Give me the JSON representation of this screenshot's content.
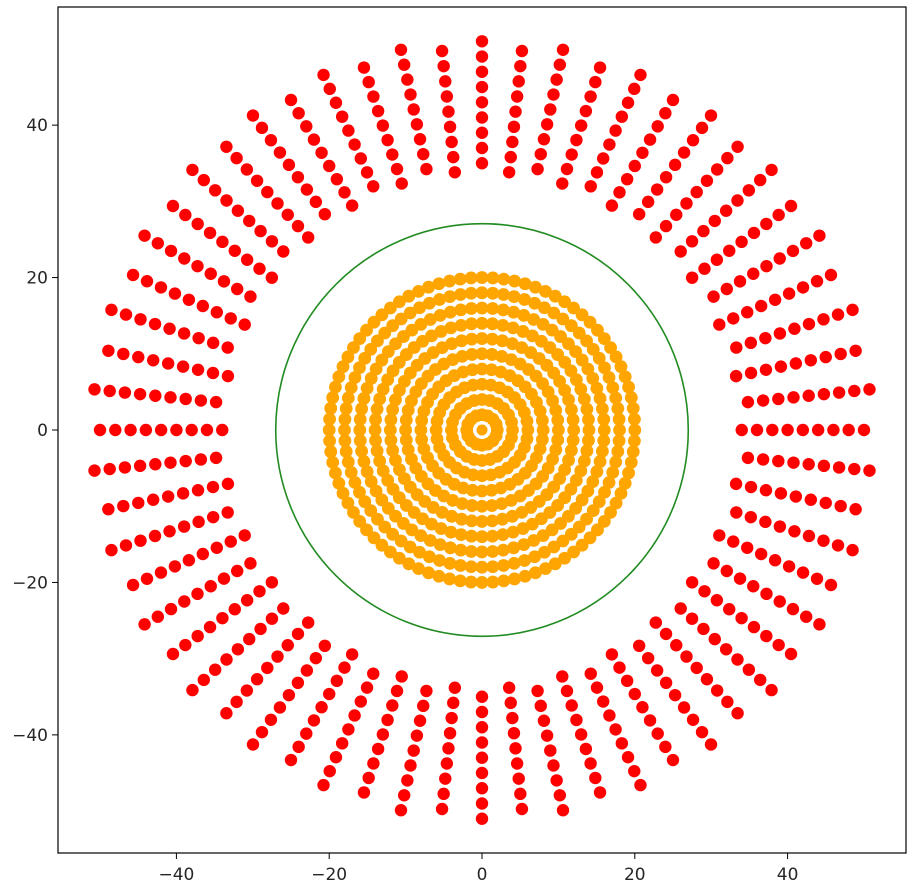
{
  "chart_data": {
    "type": "scatter",
    "title": "",
    "xlabel": "",
    "ylabel": "",
    "xlim": [
      -55.5,
      55.5
    ],
    "ylim": [
      -55.5,
      55.5
    ],
    "grid": false,
    "x_ticks": [
      -40,
      -20,
      0,
      20,
      40
    ],
    "y_ticks": [
      -40,
      -20,
      0,
      20,
      40
    ],
    "x_tick_labels": [
      "−40",
      "−20",
      "0",
      "20",
      "40"
    ],
    "y_tick_labels": [
      "−40",
      "−20",
      "0",
      "20",
      "40"
    ],
    "series": [
      {
        "kind": "concentric-ring-points",
        "color": "#ffa500",
        "radii": [
          0,
          2,
          4,
          6,
          8,
          10,
          12,
          14,
          16,
          18,
          20
        ],
        "points_per_ring": [
          1,
          16,
          24,
          32,
          40,
          48,
          56,
          64,
          72,
          80,
          88
        ]
      },
      {
        "kind": "radial-ray-points",
        "color": "#ff0000",
        "radii": [
          34,
          36,
          38,
          40,
          42,
          44,
          46,
          48,
          50
        ],
        "rays": 60,
        "alternate_offset": true
      }
    ],
    "boundary_circle": {
      "radius": 27,
      "color": "#228b22"
    }
  }
}
